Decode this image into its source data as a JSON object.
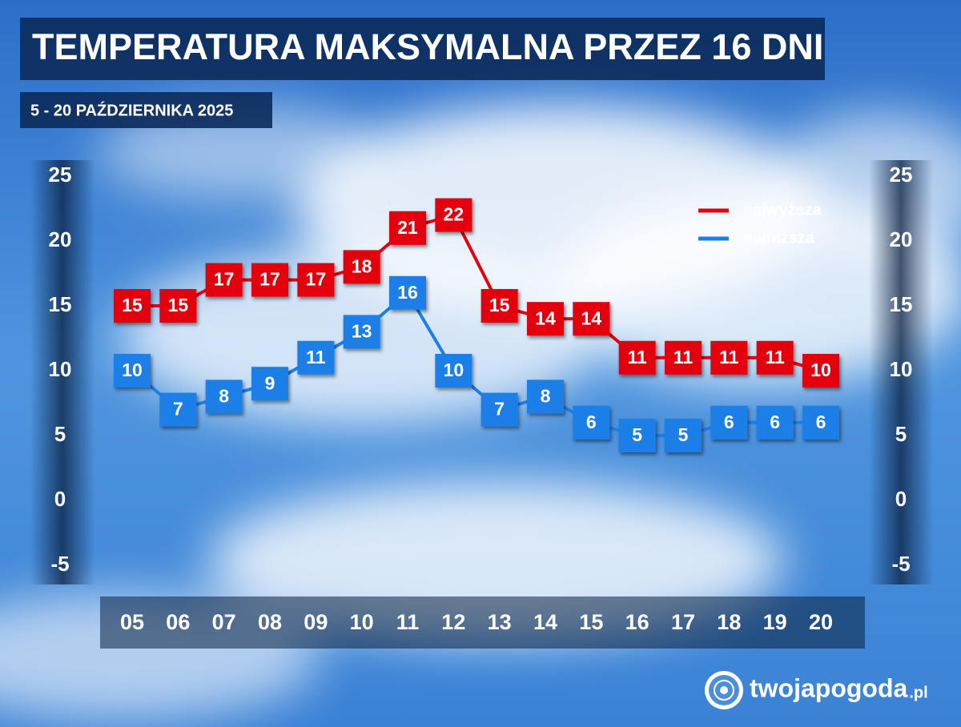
{
  "chart_data": {
    "type": "line",
    "title": "TEMPERATURA MAKSYMALNA PRZEZ 16 DNI",
    "subtitle": "5 - 20 PAŹDZIERNIKA 2025",
    "categories": [
      "05",
      "06",
      "07",
      "08",
      "09",
      "10",
      "11",
      "12",
      "13",
      "14",
      "15",
      "16",
      "17",
      "18",
      "19",
      "20"
    ],
    "category_colors": [
      "#e3000f",
      "#ffffff",
      "#ffffff",
      "#ffffff",
      "#ffffff",
      "#ffffff",
      "#f5b800",
      "#e3000f",
      "#ffffff",
      "#ffffff",
      "#ffffff",
      "#ffffff",
      "#ffffff",
      "#f5b800",
      "#e3000f",
      "#ffffff"
    ],
    "series": [
      {
        "name": "najwyższa",
        "color": "#e3000f",
        "values": [
          15,
          15,
          17,
          17,
          17,
          18,
          21,
          22,
          15,
          14,
          14,
          11,
          11,
          11,
          11,
          10
        ]
      },
      {
        "name": "najniższa",
        "color": "#1a7fe8",
        "values": [
          10,
          7,
          8,
          9,
          11,
          13,
          16,
          10,
          7,
          8,
          6,
          5,
          5,
          6,
          6,
          6
        ]
      }
    ],
    "ylim": [
      -5,
      25
    ],
    "yticks": [
      -5,
      0,
      5,
      10,
      15,
      20,
      25
    ],
    "y2lim": [
      -5,
      25
    ],
    "y2ticks": [
      -5,
      0,
      5,
      10,
      15,
      20,
      25
    ],
    "legend": "upper right",
    "logo": {
      "name": "twojapogoda",
      "domain": ".pl"
    }
  }
}
